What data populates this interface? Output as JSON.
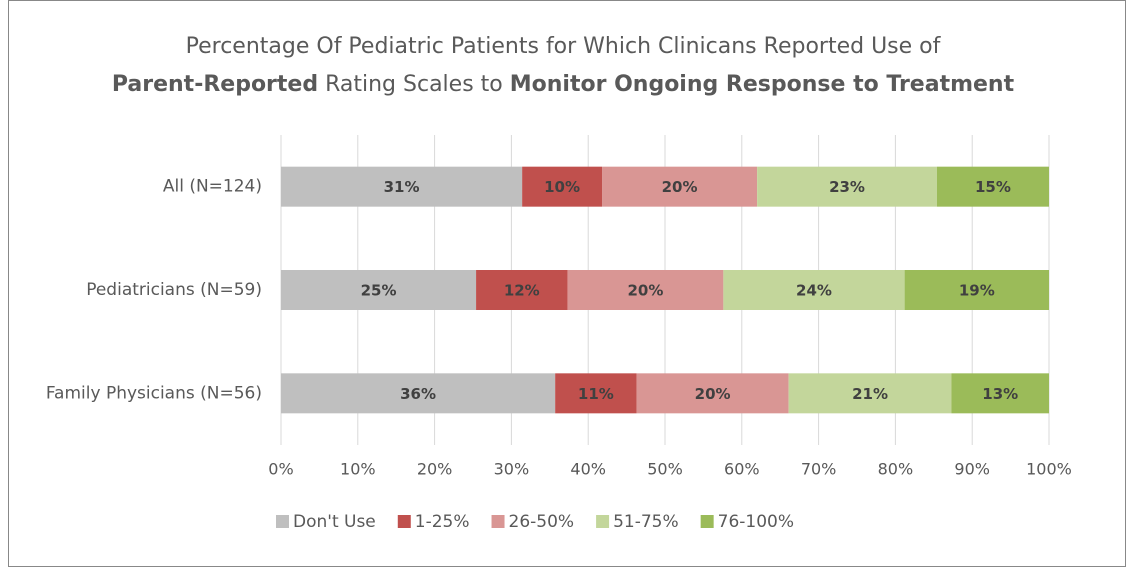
{
  "chart_data": {
    "type": "stacked_bar_horizontal",
    "title_lines": [
      [
        {
          "text": "Percentage Of Pediatric Patients for Which Clinicans Reported Use of",
          "bold": false
        }
      ],
      [
        {
          "text": "Parent-Reported",
          "bold": true
        },
        {
          "text": " Rating Scales to ",
          "bold": false
        },
        {
          "text": "Monitor Ongoing Response to Treatment",
          "bold": true
        }
      ]
    ],
    "categories": [
      "All (N=124)",
      "Pediatricians (N=59)",
      "Family Physicians (N=56)"
    ],
    "series": [
      {
        "name": "Don't Use",
        "color": "#bfbfbf",
        "values": [
          31.4,
          25.4,
          35.7
        ],
        "value_labels": [
          "31%",
          "25%",
          "36%"
        ]
      },
      {
        "name": "1-25%",
        "color": "#c0504d",
        "values": [
          10.4,
          11.9,
          10.6
        ],
        "value_labels": [
          "10%",
          "12%",
          "11%"
        ]
      },
      {
        "name": "26-50%",
        "color": "#d99694",
        "values": [
          20.2,
          20.3,
          19.8
        ],
        "value_labels": [
          "20%",
          "20%",
          "20%"
        ]
      },
      {
        "name": "51-75%",
        "color": "#c3d69b",
        "values": [
          23.4,
          23.6,
          21.2
        ],
        "value_labels": [
          "23%",
          "24%",
          "21%"
        ]
      },
      {
        "name": "76-100%",
        "color": "#9bbb59",
        "values": [
          14.6,
          18.8,
          12.7
        ],
        "value_labels": [
          "15%",
          "19%",
          "13%"
        ]
      }
    ],
    "xlim": [
      0,
      100
    ],
    "xticks": [
      {
        "value": 0,
        "label": "0%"
      },
      {
        "value": 10,
        "label": "10%"
      },
      {
        "value": 20,
        "label": "20%"
      },
      {
        "value": 30,
        "label": "30%"
      },
      {
        "value": 40,
        "label": "40%"
      },
      {
        "value": 50,
        "label": "50%"
      },
      {
        "value": 60,
        "label": "60%"
      },
      {
        "value": 70,
        "label": "70%"
      },
      {
        "value": 80,
        "label": "80%"
      },
      {
        "value": 90,
        "label": "90%"
      },
      {
        "value": 100,
        "label": "100%"
      }
    ],
    "grid": true,
    "legend": "bottom"
  }
}
